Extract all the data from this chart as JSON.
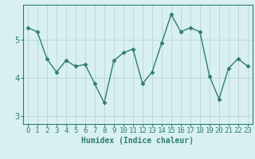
{
  "x": [
    0,
    1,
    2,
    3,
    4,
    5,
    6,
    7,
    8,
    9,
    10,
    11,
    12,
    13,
    14,
    15,
    16,
    17,
    18,
    19,
    20,
    21,
    22,
    23
  ],
  "y": [
    5.3,
    5.2,
    4.5,
    4.15,
    4.45,
    4.3,
    4.35,
    3.85,
    3.35,
    4.45,
    4.65,
    4.75,
    3.85,
    4.15,
    4.9,
    5.65,
    5.2,
    5.3,
    5.2,
    4.05,
    3.45,
    4.25,
    4.5,
    4.3
  ],
  "line_color": "#2e7d6e",
  "marker": "D",
  "marker_size": 2.5,
  "bg_color": "#d9f0f0",
  "grid_color": "#b8d4d4",
  "xlabel": "Humidex (Indice chaleur)",
  "xlabel_fontsize": 7,
  "yticks": [
    3,
    4,
    5
  ],
  "ylim": [
    2.8,
    5.9
  ],
  "xlim": [
    -0.5,
    23.5
  ],
  "tick_fontsize": 6.5,
  "xlabel_color": "#2e7d6e"
}
